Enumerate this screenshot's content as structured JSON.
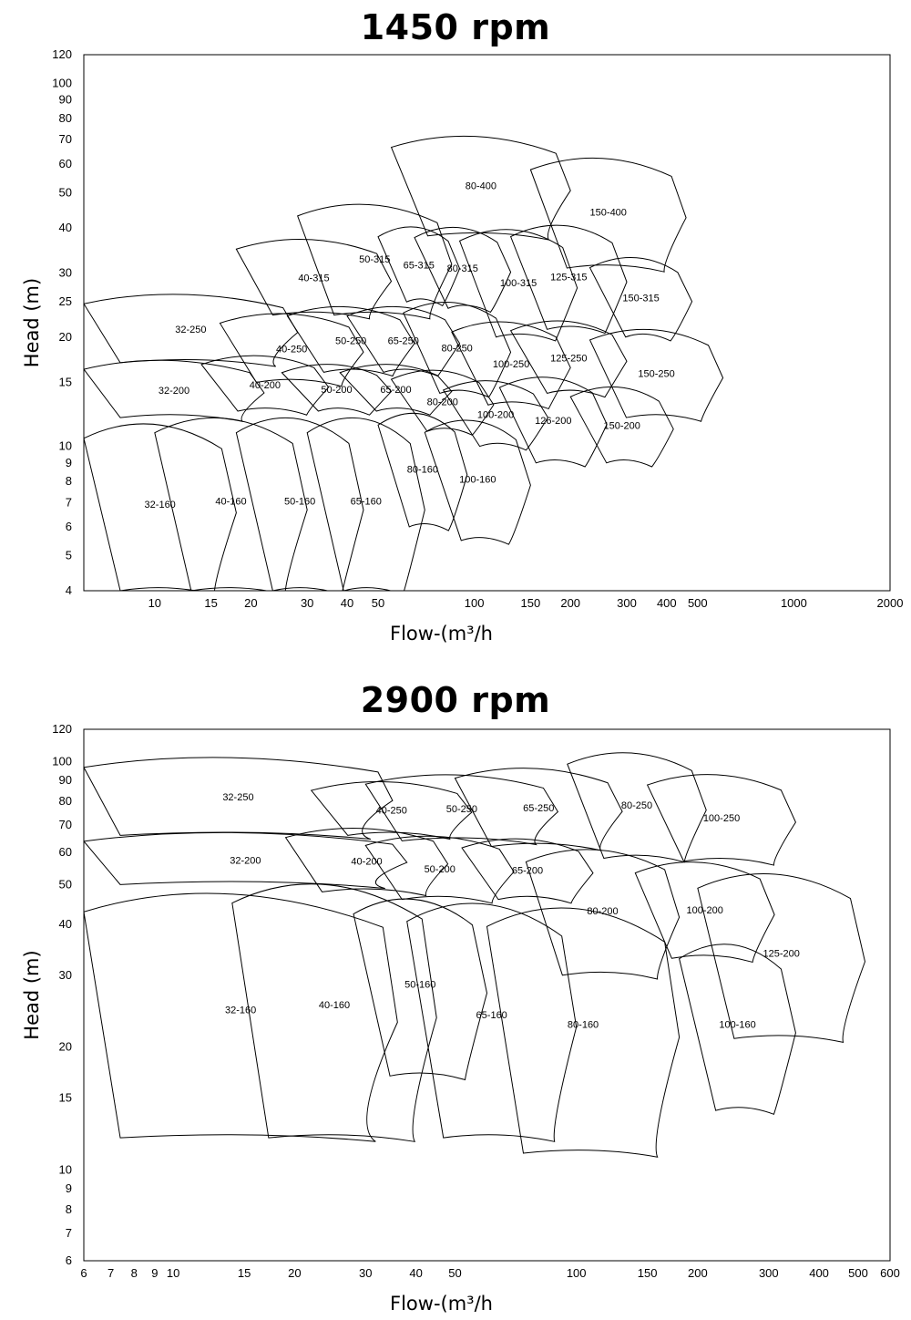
{
  "chart_data": [
    {
      "type": "area",
      "title": "1450 rpm",
      "xlabel": "Flow-(m³/h",
      "ylabel": "Head (m)",
      "x_scale": "log",
      "y_scale": "log",
      "xlim": [
        6,
        2000
      ],
      "ylim": [
        4,
        120
      ],
      "xticks": [
        "10",
        "15",
        "20",
        "30",
        "40",
        "50",
        "100",
        "150",
        "200",
        "300",
        "400",
        "500",
        "1000",
        "2000"
      ],
      "yticks": [
        "4",
        "5",
        "6",
        "7",
        "8",
        "9",
        "10",
        "15",
        "20",
        "25",
        "30",
        "40",
        "50",
        "60",
        "70",
        "80",
        "90",
        "100",
        "120"
      ],
      "grid": false,
      "regions": [
        {
          "label": "32-160",
          "q_min": 6,
          "q_max": 18,
          "h_min": 4,
          "h_max": 12
        },
        {
          "label": "40-160",
          "q_min": 10,
          "q_max": 30,
          "h_min": 4,
          "h_max": 12.5
        },
        {
          "label": "50-160",
          "q_min": 18,
          "q_max": 45,
          "h_min": 4,
          "h_max": 12.5
        },
        {
          "label": "65-160",
          "q_min": 30,
          "q_max": 70,
          "h_min": 4,
          "h_max": 12.5
        },
        {
          "label": "80-160",
          "q_min": 50,
          "q_max": 95,
          "h_min": 6,
          "h_max": 12.5
        },
        {
          "label": "100-160",
          "q_min": 70,
          "q_max": 150,
          "h_min": 5.5,
          "h_max": 12
        },
        {
          "label": "32-200",
          "q_min": 6,
          "q_max": 22,
          "h_min": 12,
          "h_max": 17
        },
        {
          "label": "40-200",
          "q_min": 14,
          "q_max": 35,
          "h_min": 12.5,
          "h_max": 17.5
        },
        {
          "label": "50-200",
          "q_min": 25,
          "q_max": 55,
          "h_min": 12.5,
          "h_max": 16.5
        },
        {
          "label": "65-200",
          "q_min": 38,
          "q_max": 85,
          "h_min": 12.5,
          "h_max": 16.5
        },
        {
          "label": "80-200",
          "q_min": 55,
          "q_max": 115,
          "h_min": 11,
          "h_max": 16
        },
        {
          "label": "100-200",
          "q_min": 80,
          "q_max": 170,
          "h_min": 10,
          "h_max": 15
        },
        {
          "label": "126-200",
          "q_min": 120,
          "q_max": 260,
          "h_min": 9,
          "h_max": 15.5
        },
        {
          "label": "150-200",
          "q_min": 200,
          "q_max": 420,
          "h_min": 9,
          "h_max": 14.5
        },
        {
          "label": "32-250",
          "q_min": 6,
          "q_max": 28,
          "h_min": 17,
          "h_max": 26
        },
        {
          "label": "40-250",
          "q_min": 16,
          "q_max": 45,
          "h_min": 15,
          "h_max": 23
        },
        {
          "label": "50-250",
          "q_min": 26,
          "q_max": 65,
          "h_min": 16,
          "h_max": 24
        },
        {
          "label": "65-250",
          "q_min": 40,
          "q_max": 90,
          "h_min": 16,
          "h_max": 24
        },
        {
          "label": "80-250",
          "q_min": 60,
          "q_max": 130,
          "h_min": 14,
          "h_max": 25
        },
        {
          "label": "100-250",
          "q_min": 85,
          "q_max": 200,
          "h_min": 13,
          "h_max": 22
        },
        {
          "label": "125-250",
          "q_min": 130,
          "q_max": 300,
          "h_min": 14,
          "h_max": 22
        },
        {
          "label": "150-250",
          "q_min": 230,
          "q_max": 600,
          "h_min": 12,
          "h_max": 21
        },
        {
          "label": "40-315",
          "q_min": 18,
          "q_max": 55,
          "h_min": 23,
          "h_max": 37
        },
        {
          "label": "50-315",
          "q_min": 28,
          "q_max": 85,
          "h_min": 23,
          "h_max": 47
        },
        {
          "label": "65-315",
          "q_min": 50,
          "q_max": 90,
          "h_min": 25,
          "h_max": 40
        },
        {
          "label": "80-315",
          "q_min": 65,
          "q_max": 130,
          "h_min": 24,
          "h_max": 40
        },
        {
          "label": "100-315",
          "q_min": 90,
          "q_max": 210,
          "h_min": 20,
          "h_max": 40
        },
        {
          "label": "125-315",
          "q_min": 130,
          "q_max": 300,
          "h_min": 21,
          "h_max": 41
        },
        {
          "label": "150-315",
          "q_min": 230,
          "q_max": 480,
          "h_min": 20,
          "h_max": 33
        },
        {
          "label": "80-400",
          "q_min": 55,
          "q_max": 200,
          "h_min": 38,
          "h_max": 72
        },
        {
          "label": "150-400",
          "q_min": 150,
          "q_max": 460,
          "h_min": 31,
          "h_max": 63
        }
      ]
    },
    {
      "type": "area",
      "title": "2900 rpm",
      "xlabel": "Flow-(m³/h",
      "ylabel": "Head (m)",
      "x_scale": "log",
      "y_scale": "log",
      "xlim": [
        6,
        600
      ],
      "ylim": [
        6,
        120
      ],
      "xticks": [
        "6",
        "7",
        "8",
        "9",
        "10",
        "15",
        "20",
        "30",
        "40",
        "50",
        "100",
        "150",
        "200",
        "300",
        "400",
        "500",
        "600"
      ],
      "yticks": [
        "6",
        "7",
        "8",
        "9",
        "10",
        "15",
        "20",
        "30",
        "40",
        "50",
        "60",
        "70",
        "80",
        "90",
        "100",
        "120"
      ],
      "grid": false,
      "regions": [
        {
          "label": "32-160",
          "q_min": 6,
          "q_max": 36,
          "h_min": 12,
          "h_max": 51
        },
        {
          "label": "40-160",
          "q_min": 14,
          "q_max": 45,
          "h_min": 12,
          "h_max": 54
        },
        {
          "label": "50-160",
          "q_min": 28,
          "q_max": 60,
          "h_min": 17,
          "h_max": 48
        },
        {
          "label": "65-160",
          "q_min": 38,
          "q_max": 100,
          "h_min": 12,
          "h_max": 48
        },
        {
          "label": "80-160",
          "q_min": 60,
          "q_max": 180,
          "h_min": 11,
          "h_max": 47
        },
        {
          "label": "100-160",
          "q_min": 180,
          "q_max": 350,
          "h_min": 14,
          "h_max": 37
        },
        {
          "label": "32-200",
          "q_min": 6,
          "q_max": 38,
          "h_min": 50,
          "h_max": 66
        },
        {
          "label": "40-200",
          "q_min": 19,
          "q_max": 48,
          "h_min": 48,
          "h_max": 68
        },
        {
          "label": "50-200",
          "q_min": 30,
          "q_max": 70,
          "h_min": 46,
          "h_max": 65
        },
        {
          "label": "65-200",
          "q_min": 52,
          "q_max": 110,
          "h_min": 46,
          "h_max": 64
        },
        {
          "label": "80-200",
          "q_min": 75,
          "q_max": 180,
          "h_min": 30,
          "h_max": 62
        },
        {
          "label": "100-200",
          "q_min": 140,
          "q_max": 310,
          "h_min": 33,
          "h_max": 57
        },
        {
          "label": "125-200",
          "q_min": 200,
          "q_max": 520,
          "h_min": 21,
          "h_max": 55
        },
        {
          "label": "32-250",
          "q_min": 6,
          "q_max": 35,
          "h_min": 66,
          "h_max": 102
        },
        {
          "label": "40-250",
          "q_min": 22,
          "q_max": 55,
          "h_min": 66,
          "h_max": 88
        },
        {
          "label": "50-250",
          "q_min": 30,
          "q_max": 90,
          "h_min": 64,
          "h_max": 92
        },
        {
          "label": "65-250",
          "q_min": 50,
          "q_max": 130,
          "h_min": 62,
          "h_max": 96
        },
        {
          "label": "80-250",
          "q_min": 95,
          "q_max": 210,
          "h_min": 58,
          "h_max": 106
        },
        {
          "label": "100-250",
          "q_min": 150,
          "q_max": 350,
          "h_min": 57,
          "h_max": 93
        }
      ]
    }
  ]
}
